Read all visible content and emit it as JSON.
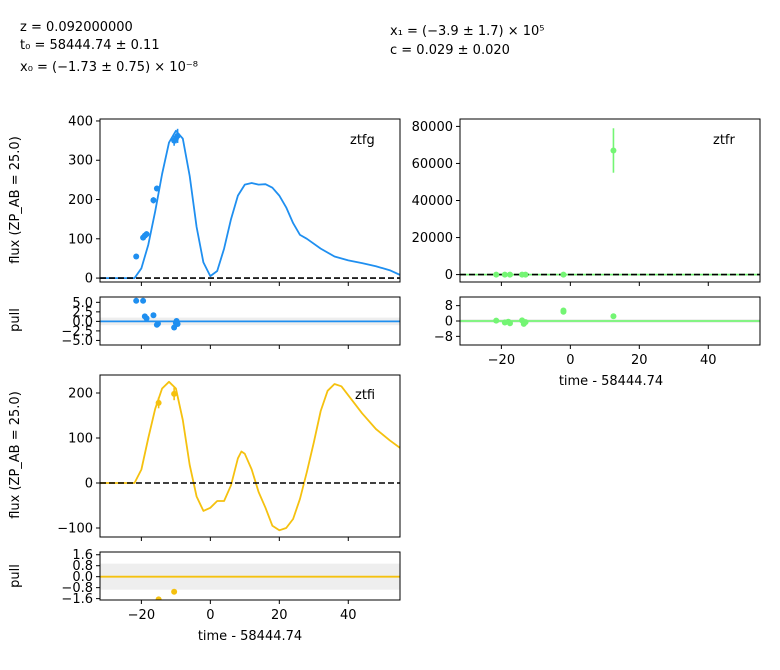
{
  "header": {
    "z": "z = 0.092000000",
    "t0": "t₀ = 58444.74 ± 0.11",
    "x0": "x₀ = (−1.73 ± 0.75) × 10⁻⁸",
    "x1": "x₁ = (−3.9 ± 1.7) × 10⁵",
    "c": "c = 0.029 ± 0.020"
  },
  "colors": {
    "ztfg": "#1f8ff0",
    "ztfr": "#74f574",
    "ztfi": "#f5c10f",
    "zero": "#000000",
    "pullband": "#eeeeee"
  },
  "chart_data": [
    {
      "id": "ztfg-flux",
      "type": "line",
      "band": "ztfg",
      "ylabel": "flux (ZP_AB = 25.0)",
      "xlim": [
        -32,
        55
      ],
      "ylim": [
        -10,
        405
      ],
      "yticks": [
        0,
        100,
        200,
        300,
        400
      ],
      "xticks": [
        -20,
        0,
        20,
        40
      ],
      "model": [
        [
          -32,
          0
        ],
        [
          -22,
          0
        ],
        [
          -20,
          25
        ],
        [
          -18,
          85
        ],
        [
          -16,
          170
        ],
        [
          -14,
          265
        ],
        [
          -12,
          345
        ],
        [
          -10,
          375
        ],
        [
          -8,
          355
        ],
        [
          -6,
          260
        ],
        [
          -4,
          130
        ],
        [
          -2,
          40
        ],
        [
          0,
          5
        ],
        [
          2,
          18
        ],
        [
          4,
          75
        ],
        [
          6,
          150
        ],
        [
          8,
          210
        ],
        [
          10,
          238
        ],
        [
          12,
          242
        ],
        [
          14,
          238
        ],
        [
          16,
          239
        ],
        [
          18,
          230
        ],
        [
          20,
          210
        ],
        [
          22,
          180
        ],
        [
          24,
          140
        ],
        [
          26,
          110
        ],
        [
          28,
          100
        ],
        [
          32,
          75
        ],
        [
          36,
          55
        ],
        [
          40,
          45
        ],
        [
          44,
          38
        ],
        [
          48,
          30
        ],
        [
          52,
          20
        ],
        [
          55,
          8
        ]
      ],
      "points": [
        [
          -21.5,
          55,
          6
        ],
        [
          -19.5,
          103,
          6
        ],
        [
          -19,
          108,
          6
        ],
        [
          -18.5,
          112,
          7
        ],
        [
          -16.5,
          198,
          8
        ],
        [
          -15.5,
          228,
          7
        ],
        [
          -10.5,
          350,
          13
        ],
        [
          -10,
          355,
          12
        ],
        [
          -9.5,
          362,
          18
        ]
      ],
      "zero_line": true
    },
    {
      "id": "ztfg-pull",
      "type": "scatter",
      "band": "ztfg",
      "ylabel": "pull",
      "xlim": [
        -32,
        55
      ],
      "ylim": [
        -6.2,
        6.4
      ],
      "yticks": [
        5.0,
        2.5,
        0.0,
        -2.5,
        -5.0
      ],
      "ytick_labels": [
        "5.0",
        "2.5",
        "0.0",
        "−2.5",
        "−5.0"
      ],
      "band_range": [
        -1,
        1
      ],
      "points": [
        [
          -21.5,
          5.4
        ],
        [
          -19.5,
          5.4
        ],
        [
          -19,
          1.3
        ],
        [
          -18.5,
          0.8
        ],
        [
          -16.5,
          1.6
        ],
        [
          -15.5,
          -0.9
        ],
        [
          -15.2,
          -0.6
        ],
        [
          -10.5,
          -1.6
        ],
        [
          -10,
          -0.4
        ],
        [
          -9.5,
          -0.7
        ],
        [
          -9.8,
          0.1
        ]
      ]
    },
    {
      "id": "ztfr-flux",
      "type": "line",
      "band": "ztfr",
      "xlim": [
        -32,
        55
      ],
      "ylim": [
        -4000,
        84000
      ],
      "yticks": [
        0,
        20000,
        40000,
        60000,
        80000
      ],
      "xticks": [
        -20,
        0,
        20,
        40
      ],
      "model": [
        [
          -32,
          0
        ],
        [
          55,
          0
        ]
      ],
      "points": [
        [
          -21.5,
          0,
          200
        ],
        [
          -19,
          0,
          200
        ],
        [
          -17.5,
          0,
          200
        ],
        [
          -14,
          0,
          200
        ],
        [
          -13,
          0,
          200
        ],
        [
          -2,
          0,
          200
        ],
        [
          12.5,
          67000,
          12000
        ]
      ],
      "zero_line": true
    },
    {
      "id": "ztfr-pull",
      "type": "scatter",
      "band": "ztfr",
      "xlabel": "time - 58444.74",
      "xlim": [
        -32,
        55
      ],
      "ylim": [
        -12.5,
        12.5
      ],
      "yticks": [
        8,
        0,
        -8
      ],
      "ytick_labels": [
        "8",
        "0",
        "−8"
      ],
      "xticks": [
        -20,
        0,
        20,
        40
      ],
      "xtick_labels": [
        "−20",
        "0",
        "20",
        "40"
      ],
      "band_range": [
        -1,
        1
      ],
      "points": [
        [
          -21.5,
          0.2
        ],
        [
          -19,
          -0.8
        ],
        [
          -18,
          -0.4
        ],
        [
          -17.5,
          -1.2
        ],
        [
          -14,
          0.3
        ],
        [
          -13.5,
          -1.5
        ],
        [
          -13,
          -0.6
        ],
        [
          -2,
          5.5
        ],
        [
          -2,
          4.8
        ],
        [
          12.5,
          2.5
        ]
      ]
    },
    {
      "id": "ztfi-flux",
      "type": "line",
      "band": "ztfi",
      "ylabel": "flux (ZP_AB = 25.0)",
      "xlim": [
        -32,
        55
      ],
      "ylim": [
        -120,
        240
      ],
      "yticks": [
        -100,
        0,
        100,
        200
      ],
      "ytick_labels": [
        "−100",
        "0",
        "100",
        "200"
      ],
      "xticks": [
        -20,
        0,
        20,
        40
      ],
      "model": [
        [
          -32,
          0
        ],
        [
          -22,
          0
        ],
        [
          -20,
          30
        ],
        [
          -18,
          100
        ],
        [
          -16,
          165
        ],
        [
          -14,
          210
        ],
        [
          -12,
          225
        ],
        [
          -10,
          210
        ],
        [
          -8,
          140
        ],
        [
          -6,
          40
        ],
        [
          -4,
          -30
        ],
        [
          -2,
          -62
        ],
        [
          0,
          -55
        ],
        [
          2,
          -40
        ],
        [
          4,
          -40
        ],
        [
          6,
          -5
        ],
        [
          8,
          55
        ],
        [
          9,
          70
        ],
        [
          10,
          65
        ],
        [
          12,
          30
        ],
        [
          14,
          -20
        ],
        [
          16,
          -55
        ],
        [
          18,
          -95
        ],
        [
          20,
          -105
        ],
        [
          22,
          -100
        ],
        [
          24,
          -80
        ],
        [
          26,
          -35
        ],
        [
          28,
          25
        ],
        [
          30,
          90
        ],
        [
          32,
          160
        ],
        [
          34,
          205
        ],
        [
          36,
          220
        ],
        [
          38,
          215
        ],
        [
          40,
          195
        ],
        [
          44,
          155
        ],
        [
          48,
          120
        ],
        [
          52,
          95
        ],
        [
          55,
          78
        ]
      ],
      "points": [
        [
          -15,
          178,
          12
        ],
        [
          -10.5,
          198,
          14
        ]
      ],
      "zero_line": true
    },
    {
      "id": "ztfi-pull",
      "type": "scatter",
      "band": "ztfi",
      "ylabel": "pull",
      "xlabel": "time - 58444.74",
      "xlim": [
        -32,
        55
      ],
      "ylim": [
        -1.7,
        1.8
      ],
      "yticks": [
        1.6,
        0.8,
        0.0,
        -0.8,
        -1.6
      ],
      "ytick_labels": [
        "1.6",
        "0.8",
        "0.0",
        "−0.8",
        "−1.6"
      ],
      "xticks": [
        -20,
        0,
        20,
        40
      ],
      "xtick_labels": [
        "−20",
        "0",
        "20",
        "40"
      ],
      "band_range": [
        -0.95,
        0.95
      ],
      "points": [
        [
          -15,
          -1.65
        ],
        [
          -10.5,
          -1.1
        ]
      ]
    }
  ],
  "labels": {
    "flux_ylabel_1": "flux (ZP_AB = 25.0)",
    "flux_ylabel_2": "flux (ZP_AB = 25.0)",
    "pull_ylabel_1": "pull",
    "pull_ylabel_2": "pull",
    "xlabel_r": "time - 58444.74",
    "xlabel_i": "time - 58444.74",
    "band_g": "ztfg",
    "band_r": "ztfr",
    "band_i": "ztfi"
  },
  "tick_text": {
    "g_flux": [
      "0",
      "100",
      "200",
      "300",
      "400"
    ],
    "g_pull": [
      "5.0",
      "2.5",
      "0.0",
      "−2.5",
      "−5.0"
    ],
    "r_flux": [
      "0",
      "20000",
      "40000",
      "60000",
      "80000"
    ],
    "r_pull": [
      "8",
      "0",
      "−8"
    ],
    "r_x": [
      "−20",
      "0",
      "20",
      "40"
    ],
    "i_flux": [
      "−100",
      "0",
      "100",
      "200"
    ],
    "i_pull": [
      "1.6",
      "0.8",
      "0.0",
      "−0.8",
      "−1.6"
    ],
    "i_x": [
      "−20",
      "0",
      "20",
      "40"
    ]
  }
}
